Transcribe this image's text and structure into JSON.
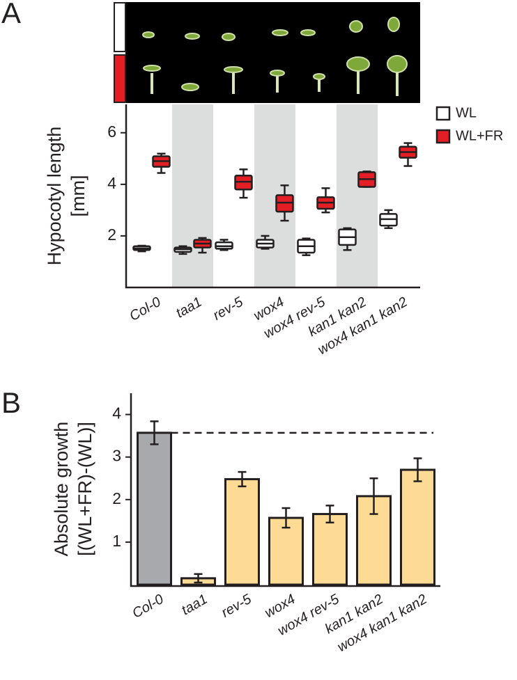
{
  "chart_data": [
    {
      "type": "box",
      "panel": "A",
      "ylabel": [
        "Hypocotyl length",
        "[mm]"
      ],
      "categories": [
        "Col-0",
        "taa1",
        "rev-5",
        "wox4",
        "wox4 rev-5",
        "kan1 kan2",
        "wox4 kan1 kan2"
      ],
      "ylim": [
        0,
        7.1
      ],
      "yticks": [
        2,
        4,
        6
      ],
      "legend": "upper right",
      "shaded_categories": [
        1,
        3,
        5
      ],
      "series": [
        {
          "name": "WL",
          "color": "#ffffff",
          "boxes": [
            {
              "min": 1.4,
              "q1": 1.45,
              "median": 1.52,
              "q3": 1.6,
              "max": 1.62
            },
            {
              "min": 1.3,
              "q1": 1.38,
              "median": 1.48,
              "q3": 1.55,
              "max": 1.6
            },
            {
              "min": 1.45,
              "q1": 1.5,
              "median": 1.6,
              "q3": 1.75,
              "max": 1.85
            },
            {
              "min": 1.5,
              "q1": 1.55,
              "median": 1.7,
              "q3": 1.85,
              "max": 2.0
            },
            {
              "min": 1.25,
              "q1": 1.35,
              "median": 1.6,
              "q3": 1.85,
              "max": 1.9
            },
            {
              "min": 1.45,
              "q1": 1.65,
              "median": 1.95,
              "q3": 2.25,
              "max": 2.3
            },
            {
              "min": 2.3,
              "q1": 2.4,
              "median": 2.65,
              "q3": 2.85,
              "max": 3.0
            }
          ]
        },
        {
          "name": "WL+FR",
          "color": "#e31e24",
          "boxes": [
            {
              "min": 4.44,
              "q1": 4.68,
              "median": 4.9,
              "q3": 5.09,
              "max": 5.19
            },
            {
              "min": 1.35,
              "q1": 1.55,
              "median": 1.7,
              "q3": 1.85,
              "max": 1.92
            },
            {
              "min": 3.48,
              "q1": 3.8,
              "median": 4.1,
              "q3": 4.34,
              "max": 4.58
            },
            {
              "min": 2.59,
              "q1": 2.94,
              "median": 3.29,
              "q3": 3.58,
              "max": 3.96
            },
            {
              "min": 2.91,
              "q1": 3.05,
              "median": 3.29,
              "q3": 3.5,
              "max": 3.85
            },
            {
              "min": 3.9,
              "q1": 3.9,
              "median": 4.2,
              "q3": 4.47,
              "max": 4.5
            },
            {
              "min": 4.71,
              "q1": 5.03,
              "median": 5.25,
              "q3": 5.46,
              "max": 5.6
            }
          ]
        }
      ]
    },
    {
      "type": "bar",
      "panel": "B",
      "ylabel": [
        "Absolute growth",
        "[(WL+FR)-(WL)]"
      ],
      "categories": [
        "Col-0",
        "taa1",
        "rev-5",
        "wox4",
        "wox4 rev-5",
        "kan1 kan2",
        "wox4 kan1 kan2"
      ],
      "values": [
        3.57,
        0.15,
        2.48,
        1.57,
        1.66,
        2.08,
        2.7
      ],
      "errors": [
        0.27,
        0.1,
        0.17,
        0.23,
        0.2,
        0.42,
        0.27
      ],
      "colors": [
        "#a7a9ac",
        "#fddb95",
        "#fddb95",
        "#fddb95",
        "#fddb95",
        "#fddb95",
        "#fddb95"
      ],
      "ylim": [
        0,
        4.5
      ],
      "yticks": [
        1,
        2,
        3,
        4
      ],
      "reference_line": "dashed"
    }
  ]
}
